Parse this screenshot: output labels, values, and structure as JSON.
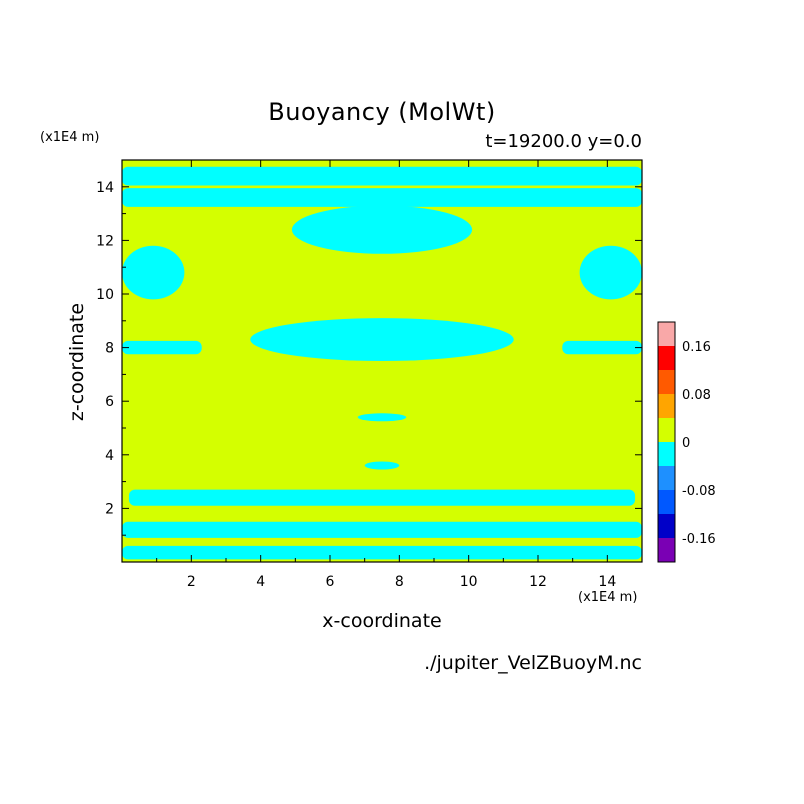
{
  "chart_data": {
    "type": "heatmap",
    "title": "Buoyancy (MolWt)",
    "subtitle": "t=19200.0 y=0.0",
    "xlabel": "x-coordinate",
    "ylabel": "z-coordinate",
    "x_unit_label": "(x1E4 m)",
    "z_unit_label": "(x1E4 m)",
    "xlim": [
      0,
      15
    ],
    "zlim": [
      0,
      15
    ],
    "x_ticks": [
      2,
      4,
      6,
      8,
      10,
      12,
      14
    ],
    "z_ticks": [
      2,
      4,
      6,
      8,
      10,
      12,
      14
    ],
    "x_tick_labels": [
      "2",
      "4",
      "6",
      "8",
      "10",
      "12",
      "14"
    ],
    "z_tick_labels": [
      "2",
      "4",
      "6",
      "8",
      "10",
      "12",
      "14"
    ],
    "colorbar": {
      "levels": [
        {
          "range": [
            0.16,
            0.2
          ],
          "color": "#f9a8a8"
        },
        {
          "range": [
            0.12,
            0.16
          ],
          "color": "#ff0000"
        },
        {
          "range": [
            0.08,
            0.12
          ],
          "color": "#ff5a00"
        },
        {
          "range": [
            0.04,
            0.08
          ],
          "color": "#ffa500"
        },
        {
          "range": [
            0.0,
            0.04
          ],
          "color": "#d4ff00"
        },
        {
          "range": [
            -0.04,
            0.0
          ],
          "color": "#00ffff"
        },
        {
          "range": [
            -0.08,
            -0.04
          ],
          "color": "#1e90ff"
        },
        {
          "range": [
            -0.12,
            -0.08
          ],
          "color": "#0058ff"
        },
        {
          "range": [
            -0.16,
            -0.12
          ],
          "color": "#0000c8"
        },
        {
          "range": [
            -0.2,
            -0.16
          ],
          "color": "#7a00b4"
        }
      ],
      "tick_values": [
        0.16,
        0.08,
        0,
        -0.08,
        -0.16
      ],
      "tick_labels": [
        "0.16",
        "0.08",
        "0",
        "-0.08",
        "-0.16"
      ]
    },
    "field_description_levels": [
      "0 to 0.04 (background)",
      "-0.04 to 0 (negative bands)"
    ],
    "regions_negative": [
      {
        "shape": "band",
        "z_center": 0.35,
        "z_half": 0.25,
        "x_from": 0,
        "x_to": 15
      },
      {
        "shape": "band",
        "z_center": 1.2,
        "z_half": 0.3,
        "x_from": 0,
        "x_to": 15
      },
      {
        "shape": "band",
        "z_center": 2.4,
        "z_half": 0.3,
        "x_from": 0.2,
        "x_to": 14.8
      },
      {
        "shape": "blob",
        "x": 7.5,
        "z": 3.6,
        "rx": 0.5,
        "rz": 0.15
      },
      {
        "shape": "blob",
        "x": 7.5,
        "z": 5.4,
        "rx": 0.7,
        "rz": 0.15
      },
      {
        "shape": "band",
        "z_center": 8.0,
        "z_half": 0.25,
        "x_from": 0,
        "x_to": 2.3
      },
      {
        "shape": "band",
        "z_center": 8.0,
        "z_half": 0.25,
        "x_from": 12.7,
        "x_to": 15
      },
      {
        "shape": "blob",
        "x": 7.5,
        "z": 8.3,
        "rx": 3.8,
        "rz": 0.8
      },
      {
        "shape": "blob",
        "x": 0.9,
        "z": 10.8,
        "rx": 0.9,
        "rz": 1.0
      },
      {
        "shape": "blob",
        "x": 14.1,
        "z": 10.8,
        "rx": 0.9,
        "rz": 1.0
      },
      {
        "shape": "blob",
        "x": 7.5,
        "z": 12.4,
        "rx": 2.6,
        "rz": 0.9
      },
      {
        "shape": "band",
        "z_center": 13.6,
        "z_half": 0.35,
        "x_from": 0,
        "x_to": 15
      },
      {
        "shape": "band",
        "z_center": 14.4,
        "z_half": 0.35,
        "x_from": 0,
        "x_to": 15
      }
    ]
  },
  "source_file": "./jupiter_VelZBuoyM.nc"
}
